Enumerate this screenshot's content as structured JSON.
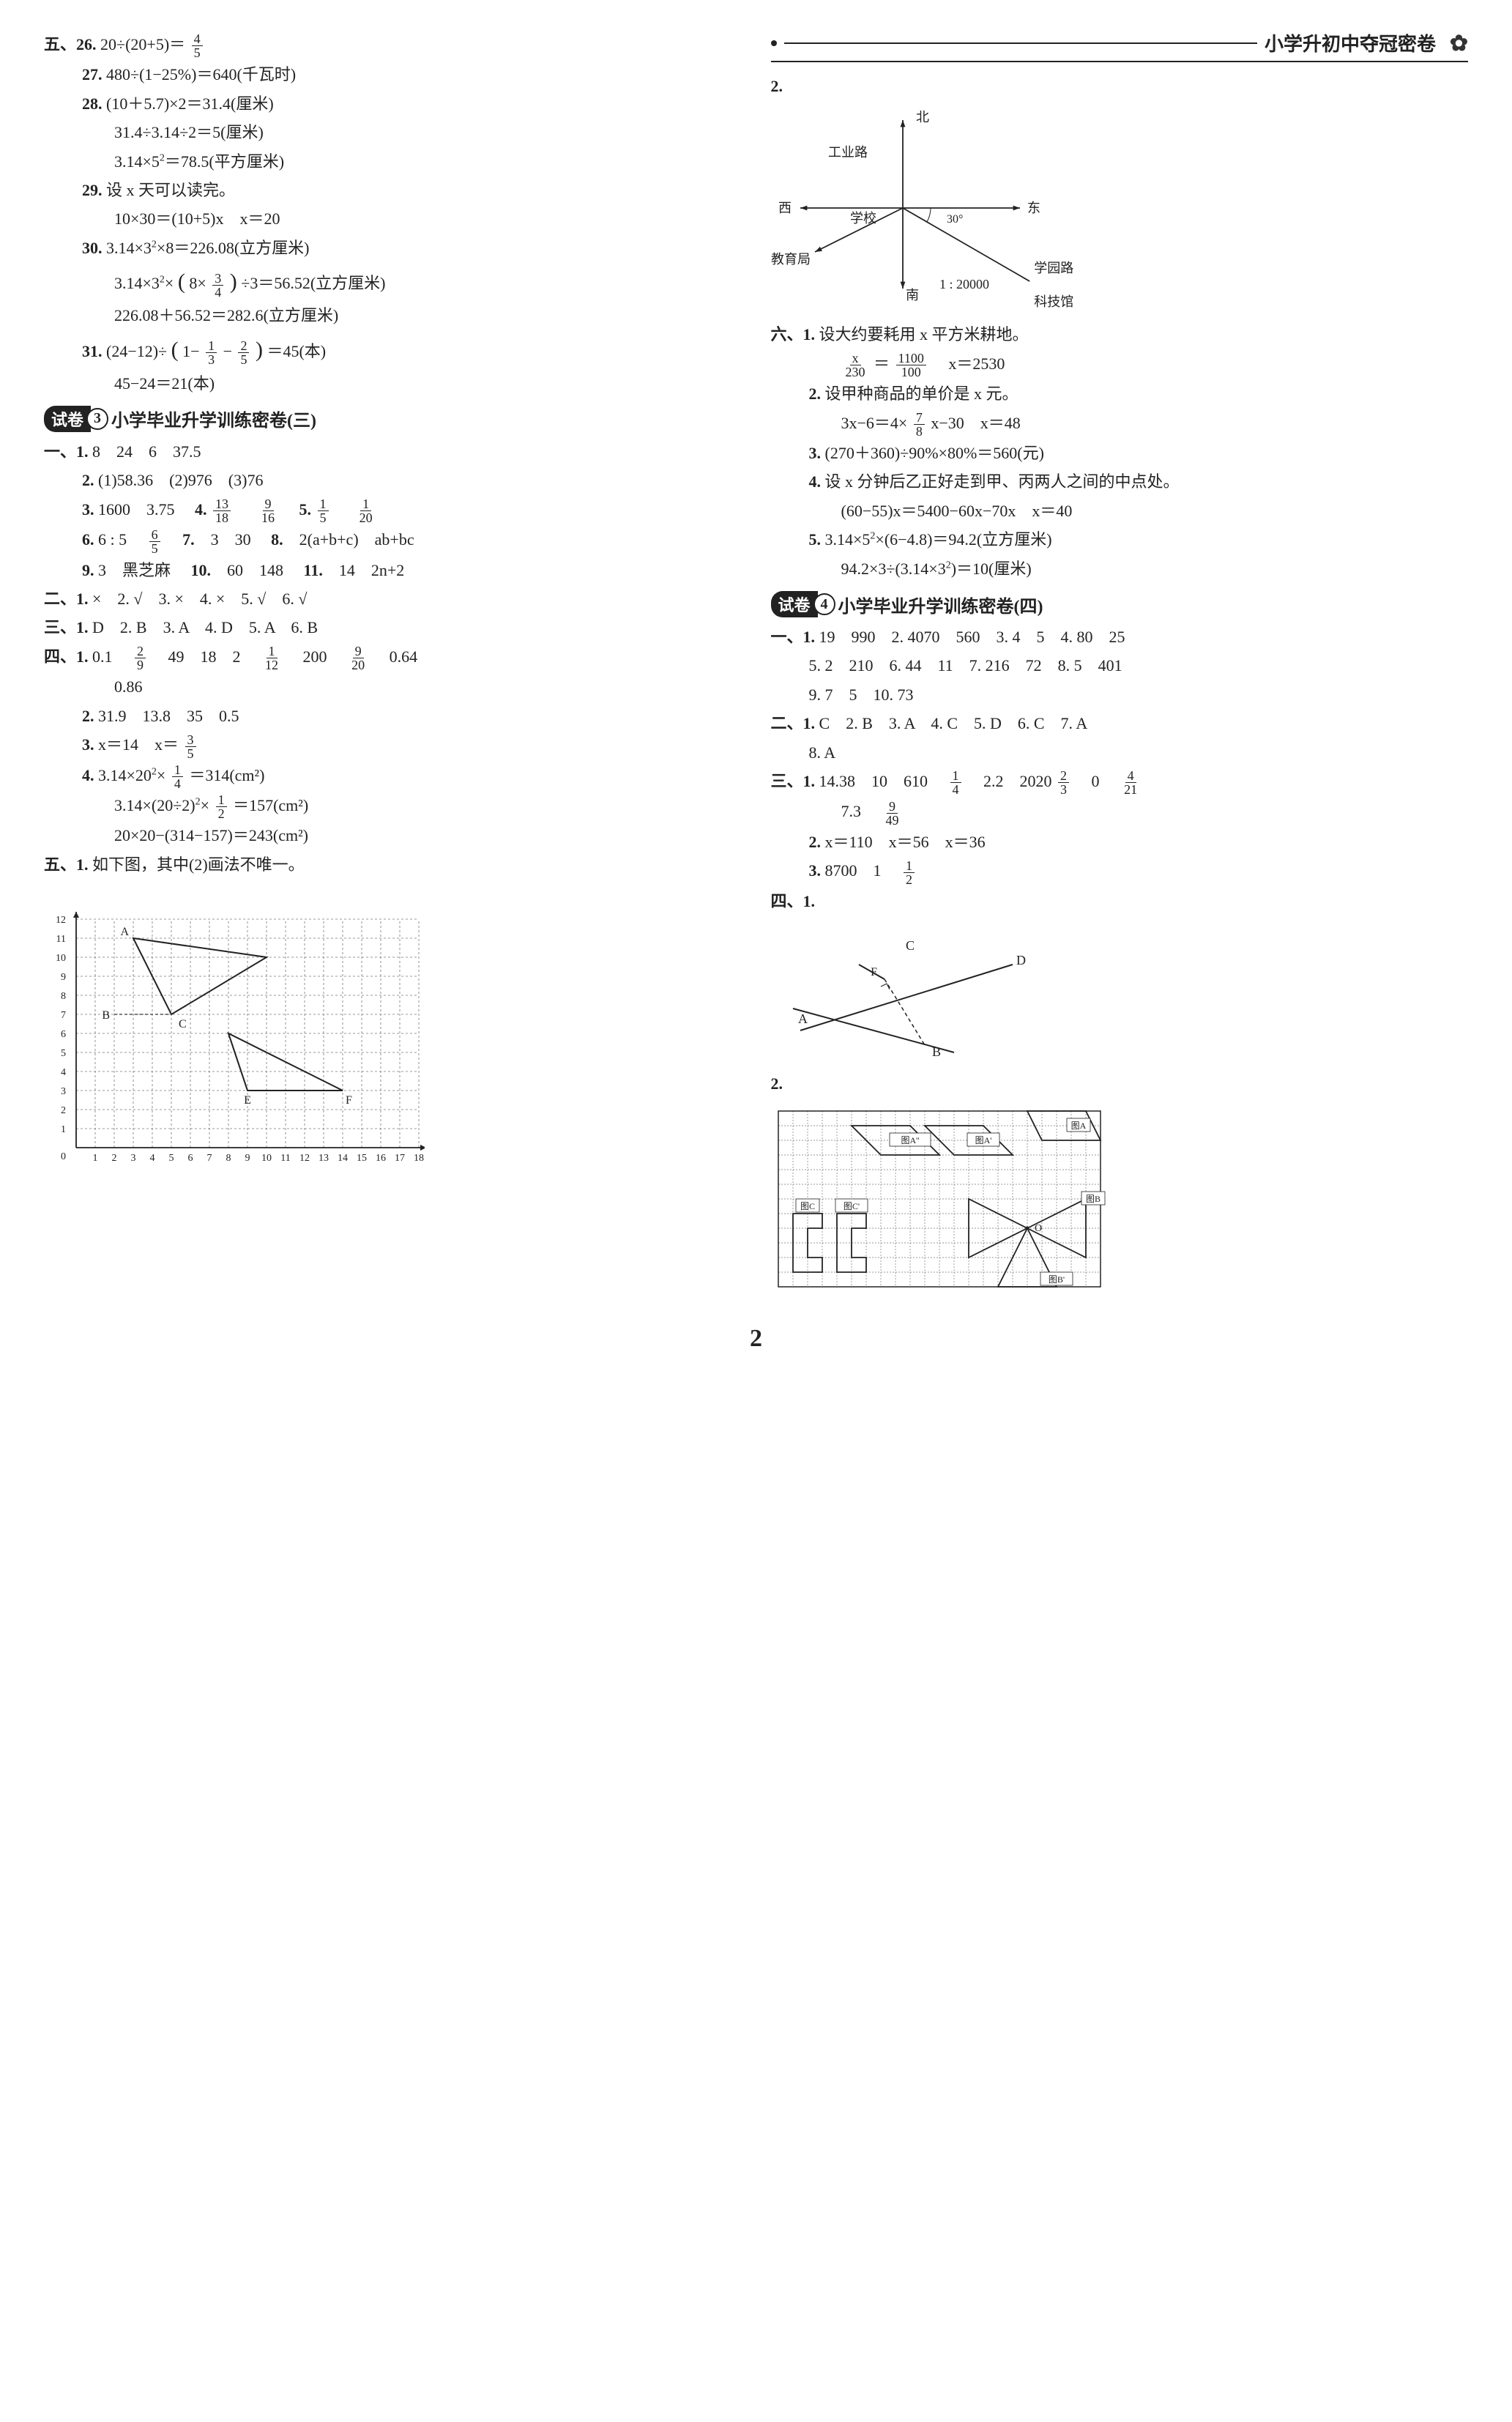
{
  "header": {
    "title": "小学升初中夺冠密卷"
  },
  "page_number": "2",
  "left": {
    "s5_26": {
      "label": "五、26.",
      "expr": "20÷(20+5)＝",
      "frac": {
        "n": "4",
        "d": "5"
      }
    },
    "s5_27": {
      "label": "27.",
      "text": "480÷(1−25%)＝640(千瓦时)"
    },
    "s5_28a": {
      "label": "28.",
      "text": "(10＋5.7)×2＝31.4(厘米)"
    },
    "s5_28b": {
      "text": "31.4÷3.14÷2＝5(厘米)"
    },
    "s5_28c": {
      "text_a": "3.14×5",
      "sup": "2",
      "text_b": "＝78.5(平方厘米)"
    },
    "s5_29a": {
      "label": "29.",
      "text": "设 x 天可以读完。"
    },
    "s5_29b": {
      "text": "10×30＝(10+5)x　x＝20"
    },
    "s5_30a": {
      "label": "30.",
      "text_a": "3.14×3",
      "sup": "2",
      "text_b": "×8＝226.08(立方厘米)"
    },
    "s5_30b": {
      "text_a": "3.14×3",
      "sup": "2",
      "text_b": "×",
      "paren_open": "(",
      "frac_in": "8×",
      "frac": {
        "n": "3",
        "d": "4"
      },
      "paren_close": ")",
      "tail": "÷3＝56.52(立方厘米)"
    },
    "s5_30c": {
      "text": "226.08＋56.52＝282.6(立方厘米)"
    },
    "s5_31a": {
      "label": "31.",
      "text_a": "(24−12)÷",
      "paren_open": "(",
      "mid": "1−",
      "frac1": {
        "n": "1",
        "d": "3"
      },
      "minus": "−",
      "frac2": {
        "n": "2",
        "d": "5"
      },
      "paren_close": ")",
      "tail": "＝45(本)"
    },
    "s5_31b": {
      "text": "45−24＝21(本)"
    },
    "paper3": {
      "tag": "试卷",
      "num": "3",
      "title": "小学毕业升学训练密卷(三)"
    },
    "p3_1_1": {
      "label": "一、1.",
      "text": "8　24　6　37.5"
    },
    "p3_1_2": {
      "label": "2.",
      "text": "(1)58.36　(2)976　(3)76"
    },
    "p3_1_3": {
      "label": "3.",
      "text": "1600　3.75　",
      "lab4": "4.",
      "f1": {
        "n": "13",
        "d": "18"
      },
      "sp": "　",
      "f2": {
        "n": "9",
        "d": "16"
      },
      "lab5": "　5.",
      "f3": {
        "n": "1",
        "d": "5"
      },
      "sp2": "　",
      "f4": {
        "n": "1",
        "d": "20"
      }
    },
    "p3_1_6": {
      "label": "6.",
      "text": "6 : 5　",
      "frac": {
        "n": "6",
        "d": "5"
      },
      "lab7": "　7.",
      "t7": "　3　30　",
      "lab8": "8.",
      "t8": "　2(a+b+c)　ab+bc"
    },
    "p3_1_9": {
      "label": "9.",
      "text": "3　黑芝麻　",
      "lab10": "10.",
      "t10": "　60　148　",
      "lab11": "11.",
      "t11": "　14　2n+2"
    },
    "p3_2": {
      "label": "二、1.",
      "text": "×　2. √　3. ×　4. ×　5. √　6. √"
    },
    "p3_3": {
      "label": "三、1.",
      "text": "D　2. B　3. A　4. D　5. A　6. B"
    },
    "p3_4_1": {
      "label": "四、1.",
      "text": "0.1　",
      "f1": {
        "n": "2",
        "d": "9"
      },
      "mid": "　49　18　2　",
      "f2": {
        "n": "1",
        "d": "12"
      },
      "mid2": "　200　",
      "f3": {
        "n": "9",
        "d": "20"
      },
      "tail": "　0.64"
    },
    "p3_4_1b": {
      "text": "0.86"
    },
    "p3_4_2": {
      "label": "2.",
      "text": "31.9　13.8　35　0.5"
    },
    "p3_4_3": {
      "label": "3.",
      "text": "x＝14　x＝",
      "frac": {
        "n": "3",
        "d": "5"
      }
    },
    "p3_4_4a": {
      "label": "4.",
      "text_a": "3.14×20",
      "sup": "2",
      "text_b": "×",
      "frac": {
        "n": "1",
        "d": "4"
      },
      "tail": "＝314(cm²)"
    },
    "p3_4_4b": {
      "text_a": "3.14×(20÷2)",
      "sup": "2",
      "text_b": "×",
      "frac": {
        "n": "1",
        "d": "2"
      },
      "tail": "＝157(cm²)"
    },
    "p3_4_4c": {
      "text": "20×20−(314−157)＝243(cm²)"
    },
    "p3_5_1": {
      "label": "五、1.",
      "text": "如下图，其中(2)画法不唯一。"
    },
    "grid1": {
      "x_ticks": [
        "1",
        "2",
        "3",
        "4",
        "5",
        "6",
        "7",
        "8",
        "9",
        "10",
        "11",
        "12",
        "13",
        "14",
        "15",
        "16",
        "17",
        "18"
      ],
      "y_ticks": [
        "0",
        "1",
        "2",
        "3",
        "4",
        "5",
        "6",
        "7",
        "8",
        "9",
        "10",
        "11",
        "12"
      ],
      "labels": {
        "A": "A",
        "B": "B",
        "C": "C",
        "E": "E",
        "F": "F"
      },
      "triangle1": [
        [
          3,
          11
        ],
        [
          10,
          10
        ],
        [
          5,
          7
        ]
      ],
      "triangle2": [
        [
          8,
          6
        ],
        [
          9,
          3
        ],
        [
          14,
          3
        ]
      ],
      "point_B": [
        2,
        7
      ],
      "grid_color": "#777777",
      "line_color": "#222222",
      "dash_color": "#555555"
    }
  },
  "right": {
    "fig2_label": "2.",
    "compass": {
      "north": "北",
      "south": "南",
      "east": "东",
      "west": "西",
      "school": "学校",
      "road1": "工业路",
      "road2": "学园路",
      "bureau": "教育局",
      "tech": "科技馆",
      "angle": "30°",
      "scale": "1 : 20000",
      "colors": {
        "line": "#222222",
        "text": "#222222"
      }
    },
    "s6_1a": {
      "label": "六、1.",
      "text": "设大约要耗用 x 平方米耕地。"
    },
    "s6_1b": {
      "f1": {
        "n": "x",
        "d": "230"
      },
      "eq": "＝",
      "f2": {
        "n": "1100",
        "d": "100"
      },
      "tail": "　x＝2530"
    },
    "s6_2a": {
      "label": "2.",
      "text": "设甲种商品的单价是 x 元。"
    },
    "s6_2b": {
      "text_a": "3x−6＝4×",
      "frac": {
        "n": "7",
        "d": "8"
      },
      "text_b": "x−30　x＝48"
    },
    "s6_3": {
      "label": "3.",
      "text": "(270＋360)÷90%×80%＝560(元)"
    },
    "s6_4a": {
      "label": "4.",
      "text": "设 x 分钟后乙正好走到甲、丙两人之间的中点处。"
    },
    "s6_4b": {
      "text": "(60−55)x＝5400−60x−70x　x＝40"
    },
    "s6_5a": {
      "label": "5.",
      "text_a": "3.14×5",
      "sup": "2",
      "text_b": "×(6−4.8)＝94.2(立方厘米)"
    },
    "s6_5b": {
      "text_a": "94.2×3÷(3.14×3",
      "sup": "2",
      "text_b": ")＝10(厘米)"
    },
    "paper4": {
      "tag": "试卷",
      "num": "4",
      "title": "小学毕业升学训练密卷(四)"
    },
    "p4_1": {
      "label": "一、1.",
      "text": "19　990　2. 4070　560　3. 4　5　4. 80　25"
    },
    "p4_1b": {
      "text": "5. 2　210　6. 44　11　7. 216　72　8. 5　401"
    },
    "p4_1c": {
      "text": "9. 7　5　10. 73"
    },
    "p4_2": {
      "label": "二、1.",
      "text": "C　2. B　3. A　4. C　5. D　6. C　7. A"
    },
    "p4_2b": {
      "text": "8. A"
    },
    "p4_3_1": {
      "label": "三、1.",
      "text": "14.38　10　610　",
      "f1": {
        "n": "1",
        "d": "4"
      },
      "mid": "　2.2　2020",
      "f2": {
        "n": "2",
        "d": "3"
      },
      "mid2": "　0　",
      "f3": {
        "n": "4",
        "d": "21"
      }
    },
    "p4_3_1b": {
      "text": "7.3　",
      "frac": {
        "n": "9",
        "d": "49"
      }
    },
    "p4_3_2": {
      "label": "2.",
      "text": "x＝110　x＝56　x＝36"
    },
    "p4_3_3": {
      "label": "3.",
      "text": "8700　1　",
      "frac": {
        "n": "1",
        "d": "2"
      }
    },
    "p4_4_1_label": "四、1.",
    "geom": {
      "labels": {
        "A": "A",
        "B": "B",
        "C": "C",
        "D": "D",
        "F": "F"
      },
      "colors": {
        "line": "#222222"
      }
    },
    "p4_4_2_label": "2.",
    "grid2": {
      "labels": {
        "A": "图A",
        "Ap": "图A'",
        "App": "图A''",
        "B": "图B",
        "Bp": "图B'",
        "C": "图C",
        "Cp": "图C'",
        "O": "O"
      },
      "grid_color": "#777777",
      "line_color": "#222222"
    }
  }
}
